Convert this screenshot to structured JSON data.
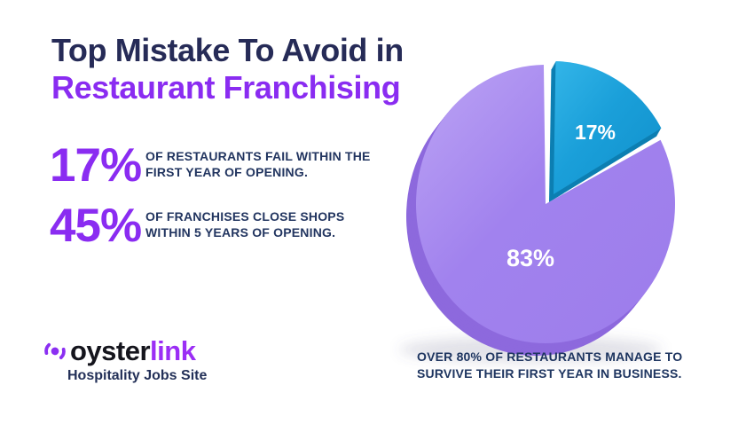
{
  "header": {
    "title_line1": "Top Mistake To Avoid in",
    "title_line2": "Restaurant Franchising"
  },
  "stats": [
    {
      "value": "17%",
      "description": "OF RESTAURANTS FAIL WITHIN THE FIRST YEAR OF OPENING."
    },
    {
      "value": "45%",
      "description": "OF FRANCHISES CLOSE SHOPS WITHIN 5 YEARS OF OPENING."
    }
  ],
  "brand": {
    "name_part1": "oyster",
    "name_part2": "link",
    "tagline": "Hospitality Jobs Site",
    "logo_icon": "pearl-icon",
    "accent_color": "#8b2ff2"
  },
  "chart_data": {
    "type": "pie",
    "style": "3d-exploded",
    "start_angle_deg": 0,
    "legend": "none",
    "slices": [
      {
        "label": "17%",
        "value": 17,
        "exploded": true,
        "color_face": "#1a9fd9",
        "color_face_light": "#33b5e8",
        "color_face_dark": "#1190cb",
        "color_depth": "#0d7fb2"
      },
      {
        "label": "83%",
        "value": 83,
        "exploded": false,
        "color_face": "#a182ee",
        "color_face_light": "#bca4f4",
        "color_face_dark": "#9d7deb",
        "color_depth": "#8d69dd"
      }
    ],
    "caption": "OVER 80% OF RESTAURANTS MANAGE TO SURVIVE THEIR FIRST YEAR IN BUSINESS."
  },
  "colors": {
    "background": "#ffffff",
    "title_navy": "#262b57",
    "accent_purple": "#8a2cf1",
    "body_navy": "#223560",
    "pie_purple": "#a182ee",
    "pie_blue": "#1a9fd9"
  }
}
